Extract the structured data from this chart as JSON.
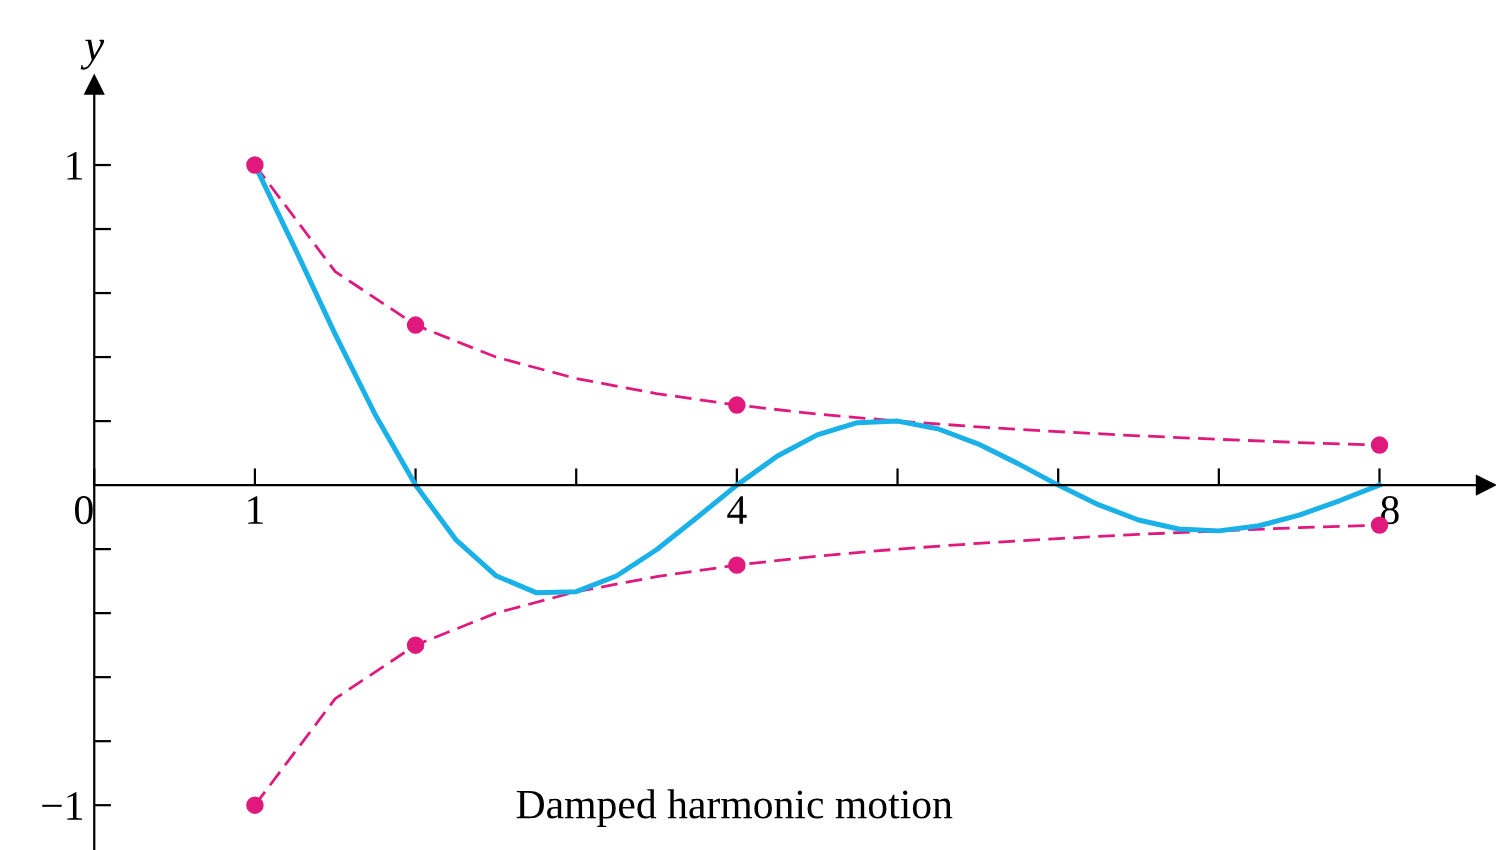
{
  "chart_data": {
    "type": "line",
    "ylabel": "y",
    "annotations": [
      "Damped harmonic motion"
    ],
    "xlim": [
      0,
      8.66
    ],
    "ylim": [
      -1.14,
      1.25
    ],
    "xticks": [
      {
        "value": 0,
        "label": "0"
      },
      1,
      {
        "value": 2,
        "label": null
      },
      {
        "value": 3,
        "label": null
      },
      4,
      {
        "value": 5,
        "label": null
      },
      {
        "value": 6,
        "label": null
      },
      {
        "value": 7,
        "label": null
      },
      8
    ],
    "yticks": [
      {
        "value": -1,
        "label": "−1"
      },
      {
        "value": -0.8,
        "label": null
      },
      {
        "value": -0.6,
        "label": null
      },
      {
        "value": -0.4,
        "label": null
      },
      {
        "value": -0.2,
        "label": null
      },
      {
        "value": 0.2,
        "label": null
      },
      {
        "value": 0.4,
        "label": null
      },
      {
        "value": 0.6,
        "label": null
      },
      {
        "value": 0.8,
        "label": null
      },
      1
    ],
    "grid": false,
    "legend": false,
    "series": [
      {
        "color": "#e0197d",
        "line_style": "dashed",
        "marker": "none",
        "x": [
          1,
          1.5,
          2,
          2.5,
          3,
          3.5,
          4,
          4.5,
          5,
          5.5,
          6,
          6.5,
          7,
          7.5,
          8
        ],
        "values": [
          1,
          0.667,
          0.5,
          0.4,
          0.333,
          0.286,
          0.25,
          0.222,
          0.2,
          0.182,
          0.167,
          0.154,
          0.143,
          0.133,
          0.125
        ]
      },
      {
        "color": "#e0197d",
        "line_style": "dashed",
        "marker": "none",
        "x": [
          1,
          1.5,
          2,
          2.5,
          3,
          3.5,
          4,
          4.5,
          5,
          5.5,
          6,
          6.5,
          7,
          7.5,
          8
        ],
        "values": [
          -1,
          -0.667,
          -0.5,
          -0.4,
          -0.333,
          -0.286,
          -0.25,
          -0.222,
          -0.2,
          -0.182,
          -0.167,
          -0.154,
          -0.143,
          -0.133,
          -0.125
        ]
      },
      {
        "color": "#1ab0e8",
        "line_style": "solid",
        "marker": "none",
        "x": [
          1,
          1.25,
          1.5,
          1.75,
          2,
          2.25,
          2.5,
          2.75,
          3,
          3.25,
          3.5,
          3.75,
          4,
          4.25,
          4.5,
          4.75,
          5,
          5.25,
          5.5,
          5.75,
          6,
          6.25,
          6.5,
          6.75,
          7,
          7.25,
          7.5,
          7.75,
          8
        ],
        "values": [
          1,
          0.739,
          0.471,
          0.219,
          0,
          -0.17,
          -0.283,
          -0.336,
          -0.333,
          -0.284,
          -0.202,
          -0.102,
          0,
          0.09,
          0.157,
          0.195,
          0.2,
          0.176,
          0.129,
          0.067,
          0,
          -0.061,
          -0.109,
          -0.137,
          -0.143,
          -0.127,
          -0.094,
          -0.049,
          0
        ]
      },
      {
        "type": "scatter",
        "color": "#e0197d",
        "marker": "circle",
        "x": [
          1,
          2,
          4,
          8
        ],
        "values": [
          1,
          0.5,
          0.25,
          0.125
        ]
      },
      {
        "type": "scatter",
        "color": "#e0197d",
        "marker": "circle",
        "x": [
          1,
          2,
          4,
          8
        ],
        "values": [
          -1,
          -0.5,
          -0.25,
          -0.125
        ]
      }
    ]
  }
}
